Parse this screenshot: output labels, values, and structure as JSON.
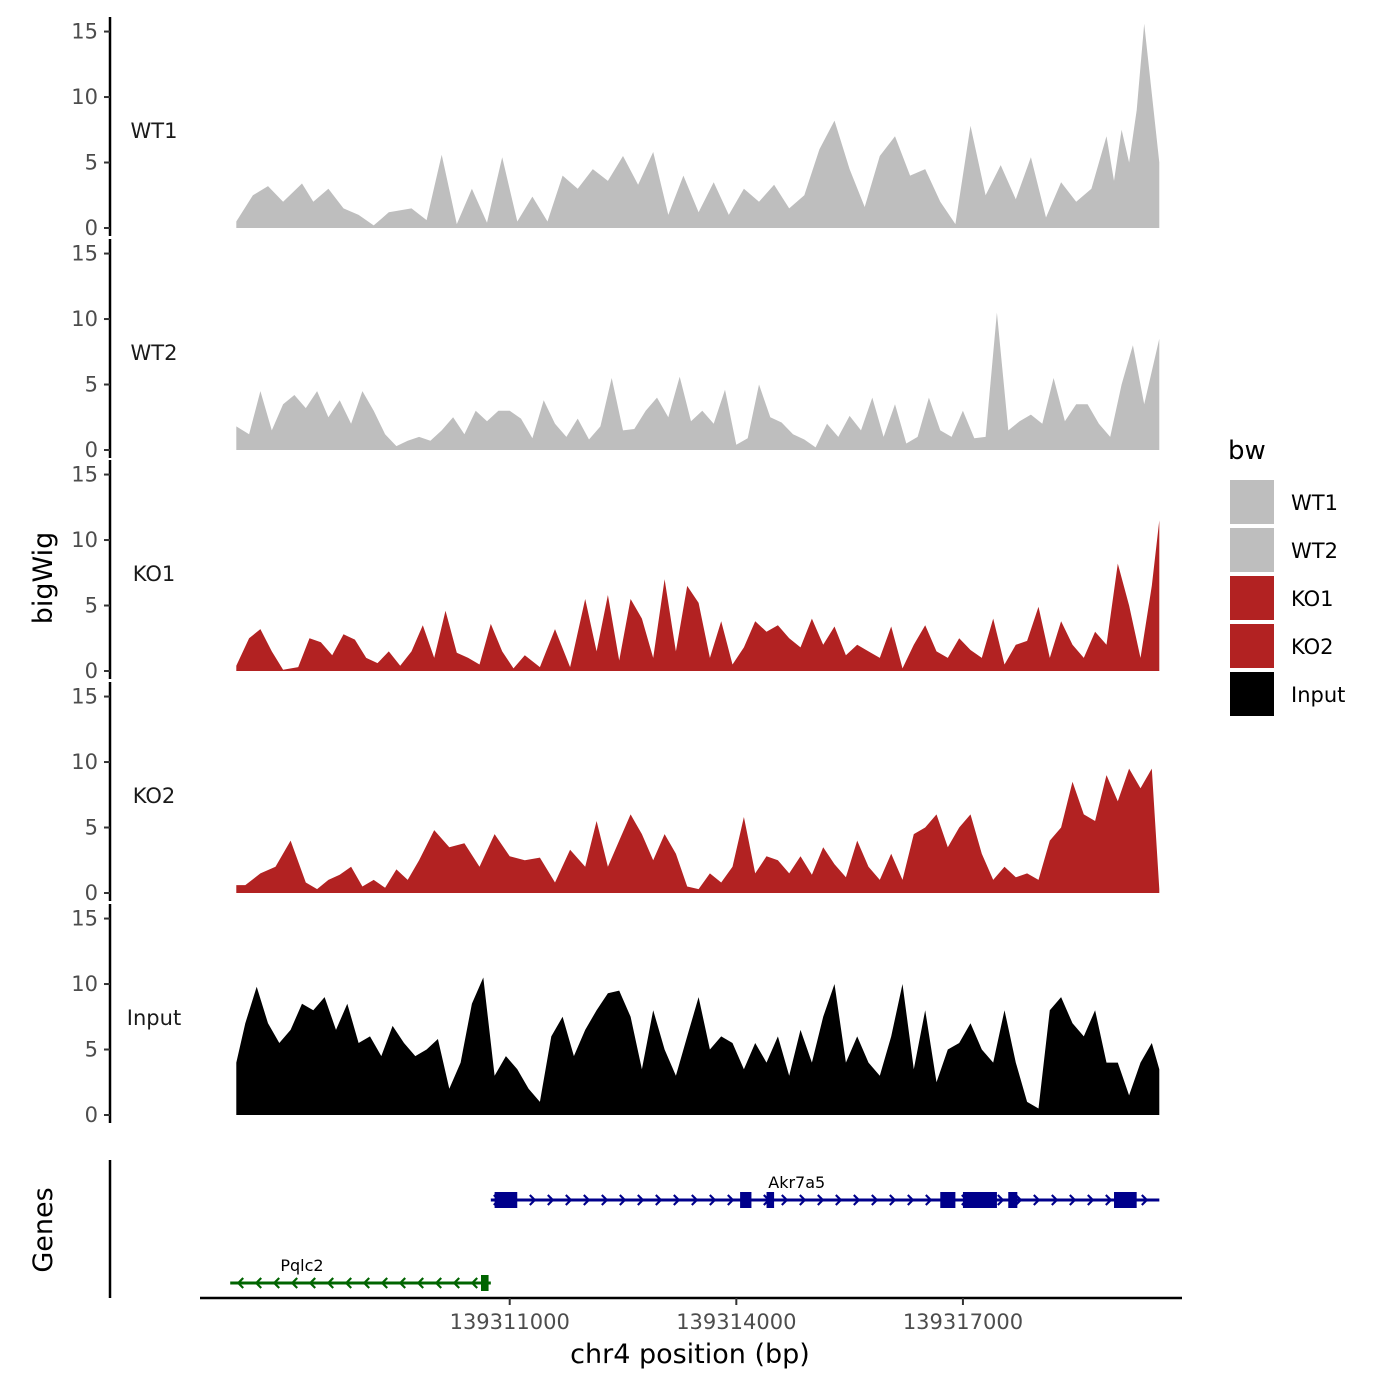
{
  "chart_data": {
    "type": "area",
    "ylabel": "bigWig",
    "xlabel": "chr4 position (bp)",
    "xlim": [
      139307000,
      139319600
    ],
    "x_axis_range": [
      139306900,
      139319900
    ],
    "x_ticks": [
      139311000,
      139314000,
      139317000
    ],
    "x_tick_labels": [
      "139311000",
      "139314000",
      "139317000"
    ],
    "ylim": [
      0,
      15.5
    ],
    "y_ticks": [
      0,
      5,
      10,
      15
    ],
    "y_tick_labels": [
      "0",
      "5",
      "10",
      "15"
    ],
    "colors": {
      "WT1": "#bebebe",
      "WT2": "#bebebe",
      "KO1": "#b22222",
      "KO2": "#b22222",
      "Input": "#000000"
    },
    "series": [
      {
        "name": "WT1",
        "x": [
          139307380,
          139307600,
          139307800,
          139308000,
          139308250,
          139308400,
          139308600,
          139308800,
          139309000,
          139309200,
          139309400,
          139309700,
          139309900,
          139310100,
          139310300,
          139310500,
          139310700,
          139310900,
          139311100,
          139311300,
          139311500,
          139311700,
          139311900,
          139312100,
          139312300,
          139312500,
          139312700,
          139312900,
          139313100,
          139313300,
          139313500,
          139313700,
          139313900,
          139314100,
          139314300,
          139314500,
          139314700,
          139314900,
          139315100,
          139315300,
          139315500,
          139315700,
          139315900,
          139316100,
          139316300,
          139316500,
          139316700,
          139316900,
          139317100,
          139317300,
          139317500,
          139317700,
          139317900,
          139318100,
          139318300,
          139318500,
          139318700,
          139318900,
          139319000,
          139319100,
          139319200,
          139319300,
          139319400,
          139319600
        ],
        "values": [
          0.5,
          2.5,
          3.2,
          2.0,
          3.4,
          2.0,
          3.0,
          1.5,
          1.0,
          0.2,
          1.2,
          1.5,
          0.6,
          5.6,
          0.3,
          3.0,
          0.4,
          5.4,
          0.5,
          2.4,
          0.5,
          4.0,
          3.0,
          4.5,
          3.6,
          5.5,
          3.3,
          5.8,
          1.0,
          4.0,
          1.2,
          3.5,
          1.0,
          3.0,
          2.0,
          3.3,
          1.5,
          2.5,
          6.0,
          8.2,
          4.5,
          1.6,
          5.5,
          7.0,
          4.0,
          4.5,
          2.0,
          0.3,
          7.8,
          2.5,
          4.8,
          2.2,
          5.4,
          0.8,
          3.5,
          2.0,
          3.0,
          7.0,
          3.6,
          7.5,
          5.0,
          9.0,
          15.6,
          5.0
        ]
      },
      {
        "name": "WT2",
        "x": [
          139307380,
          139307550,
          139307700,
          139307850,
          139308000,
          139308150,
          139308300,
          139308450,
          139308600,
          139308750,
          139308900,
          139309050,
          139309200,
          139309350,
          139309500,
          139309650,
          139309800,
          139309950,
          139310100,
          139310250,
          139310400,
          139310550,
          139310700,
          139310850,
          139311000,
          139311150,
          139311300,
          139311450,
          139311600,
          139311750,
          139311900,
          139312050,
          139312200,
          139312350,
          139312500,
          139312650,
          139312800,
          139312950,
          139313100,
          139313250,
          139313400,
          139313550,
          139313700,
          139313850,
          139314000,
          139314150,
          139314300,
          139314450,
          139314600,
          139314750,
          139314900,
          139315050,
          139315200,
          139315350,
          139315500,
          139315650,
          139315800,
          139315950,
          139316100,
          139316250,
          139316400,
          139316550,
          139316700,
          139316850,
          139317000,
          139317150,
          139317300,
          139317450,
          139317600,
          139317750,
          139317900,
          139318050,
          139318200,
          139318350,
          139318500,
          139318650,
          139318800,
          139318950,
          139319100,
          139319250,
          139319400,
          139319600
        ],
        "values": [
          1.8,
          1.2,
          4.5,
          1.5,
          3.5,
          4.2,
          3.2,
          4.5,
          2.5,
          3.8,
          2.0,
          4.5,
          3.0,
          1.2,
          0.3,
          0.7,
          1.0,
          0.7,
          1.5,
          2.5,
          1.2,
          3.0,
          2.2,
          3.0,
          3.0,
          2.4,
          0.9,
          3.8,
          2.0,
          1.0,
          2.4,
          0.8,
          1.8,
          5.5,
          1.5,
          1.6,
          3.0,
          4.0,
          2.5,
          5.6,
          2.2,
          3.0,
          2.0,
          4.6,
          0.4,
          0.9,
          5.0,
          2.5,
          2.1,
          1.2,
          0.8,
          0.2,
          2.0,
          1.0,
          2.6,
          1.5,
          4.0,
          1.0,
          3.5,
          0.5,
          1.0,
          4.0,
          1.5,
          1.0,
          3.0,
          0.9,
          1.0,
          10.5,
          1.5,
          2.2,
          2.7,
          2.0,
          5.5,
          2.2,
          3.5,
          3.5,
          2.0,
          1.0,
          5.0,
          8.0,
          3.5,
          8.5
        ]
      },
      {
        "name": "KO1",
        "x": [
          139307380,
          139307550,
          139307700,
          139307850,
          139308000,
          139308200,
          139308350,
          139308500,
          139308650,
          139308800,
          139308950,
          139309100,
          139309250,
          139309400,
          139309550,
          139309700,
          139309850,
          139310000,
          139310150,
          139310300,
          139310450,
          139310600,
          139310750,
          139310900,
          139311050,
          139311200,
          139311400,
          139311600,
          139311800,
          139312000,
          139312150,
          139312300,
          139312450,
          139312600,
          139312750,
          139312900,
          139313050,
          139313200,
          139313350,
          139313500,
          139313650,
          139313800,
          139313950,
          139314100,
          139314250,
          139314400,
          139314550,
          139314700,
          139314850,
          139315000,
          139315150,
          139315300,
          139315450,
          139315600,
          139315750,
          139315900,
          139316050,
          139316200,
          139316350,
          139316500,
          139316650,
          139316800,
          139316950,
          139317100,
          139317250,
          139317400,
          139317550,
          139317700,
          139317850,
          139318000,
          139318150,
          139318300,
          139318450,
          139318600,
          139318750,
          139318900,
          139319050,
          139319200,
          139319350,
          139319500,
          139319600
        ],
        "values": [
          0.4,
          2.5,
          3.2,
          1.5,
          0.1,
          0.3,
          2.5,
          2.2,
          1.2,
          2.8,
          2.4,
          1.0,
          0.6,
          1.5,
          0.4,
          1.5,
          3.5,
          1.0,
          4.6,
          1.4,
          1.0,
          0.5,
          3.6,
          1.5,
          0.2,
          1.2,
          0.3,
          3.2,
          0.3,
          5.5,
          1.5,
          5.8,
          0.8,
          5.5,
          4.0,
          1.0,
          7.0,
          1.5,
          6.5,
          5.2,
          1.0,
          3.8,
          0.5,
          1.8,
          3.8,
          3.0,
          3.5,
          2.5,
          1.8,
          4.0,
          2.0,
          3.4,
          1.2,
          2.0,
          1.5,
          1.0,
          3.4,
          0.2,
          2.0,
          3.5,
          1.5,
          1.0,
          2.5,
          1.6,
          1.0,
          4.0,
          0.5,
          2.0,
          2.3,
          4.9,
          1.0,
          3.8,
          2.0,
          1.0,
          3.0,
          2.0,
          8.2,
          5.0,
          1.0,
          6.5,
          11.5
        ]
      },
      {
        "name": "KO2",
        "x": [
          139307380,
          139307500,
          139307700,
          139307900,
          139308100,
          139308300,
          139308450,
          139308600,
          139308750,
          139308900,
          139309050,
          139309200,
          139309350,
          139309500,
          139309650,
          139309800,
          139310000,
          139310200,
          139310400,
          139310600,
          139310800,
          139311000,
          139311200,
          139311400,
          139311600,
          139311800,
          139312000,
          139312150,
          139312300,
          139312450,
          139312600,
          139312750,
          139312900,
          139313050,
          139313200,
          139313350,
          139313500,
          139313650,
          139313800,
          139313950,
          139314100,
          139314250,
          139314400,
          139314550,
          139314700,
          139314850,
          139315000,
          139315150,
          139315300,
          139315450,
          139315600,
          139315750,
          139315900,
          139316050,
          139316200,
          139316350,
          139316500,
          139316650,
          139316800,
          139316950,
          139317100,
          139317250,
          139317400,
          139317550,
          139317700,
          139317850,
          139318000,
          139318150,
          139318300,
          139318450,
          139318600,
          139318750,
          139318900,
          139319050,
          139319200,
          139319350,
          139319500,
          139319600
        ],
        "values": [
          0.6,
          0.6,
          1.5,
          2.0,
          4.0,
          0.8,
          0.3,
          1.0,
          1.4,
          2.0,
          0.5,
          1.0,
          0.4,
          1.8,
          1.0,
          2.5,
          4.8,
          3.5,
          3.8,
          2.0,
          4.5,
          2.8,
          2.5,
          2.7,
          0.8,
          3.3,
          2.0,
          5.5,
          2.0,
          4.0,
          6.0,
          4.5,
          2.5,
          4.5,
          3.0,
          0.5,
          0.3,
          1.5,
          0.8,
          2.0,
          5.8,
          1.5,
          2.8,
          2.5,
          1.5,
          2.8,
          1.4,
          3.5,
          2.2,
          1.2,
          4.0,
          2.0,
          1.0,
          3.0,
          1.0,
          4.5,
          5.0,
          6.0,
          3.5,
          5.0,
          6.0,
          3.0,
          1.0,
          2.0,
          1.2,
          1.5,
          1.0,
          4.0,
          5.0,
          8.5,
          6.0,
          5.5,
          9.0,
          7.0,
          9.5,
          8.0,
          9.5,
          0.3
        ]
      },
      {
        "name": "Input",
        "x": [
          139307380,
          139307500,
          139307650,
          139307800,
          139307950,
          139308100,
          139308250,
          139308400,
          139308550,
          139308700,
          139308850,
          139309000,
          139309150,
          139309300,
          139309450,
          139309600,
          139309750,
          139309900,
          139310050,
          139310200,
          139310350,
          139310500,
          139310650,
          139310800,
          139310950,
          139311100,
          139311250,
          139311400,
          139311550,
          139311700,
          139311850,
          139312000,
          139312150,
          139312300,
          139312450,
          139312600,
          139312750,
          139312900,
          139313050,
          139313200,
          139313350,
          139313500,
          139313650,
          139313800,
          139313950,
          139314100,
          139314250,
          139314400,
          139314550,
          139314700,
          139314850,
          139315000,
          139315150,
          139315300,
          139315450,
          139315600,
          139315750,
          139315900,
          139316050,
          139316200,
          139316350,
          139316500,
          139316650,
          139316800,
          139316950,
          139317100,
          139317250,
          139317400,
          139317550,
          139317700,
          139317850,
          139318000,
          139318150,
          139318300,
          139318450,
          139318600,
          139318750,
          139318900,
          139319050,
          139319200,
          139319350,
          139319500,
          139319600
        ],
        "values": [
          4.0,
          7.0,
          9.8,
          7.0,
          5.5,
          6.5,
          8.5,
          8.0,
          9.0,
          6.5,
          8.5,
          5.5,
          6.0,
          4.5,
          6.8,
          5.5,
          4.5,
          5.0,
          5.8,
          2.0,
          4.0,
          8.5,
          10.5,
          3.0,
          4.5,
          3.5,
          2.0,
          1.0,
          6.0,
          7.5,
          4.5,
          6.5,
          8.0,
          9.3,
          9.5,
          7.5,
          3.5,
          8.0,
          5.0,
          3.0,
          6.0,
          9.0,
          5.0,
          6.0,
          5.5,
          3.5,
          5.5,
          4.0,
          6.0,
          3.0,
          6.5,
          4.0,
          7.5,
          10.0,
          4.0,
          6.0,
          4.0,
          3.0,
          6.0,
          10.0,
          3.5,
          8.0,
          2.5,
          5.0,
          5.5,
          7.0,
          5.0,
          4.0,
          8.0,
          4.0,
          1.0,
          0.5,
          8.0,
          9.0,
          7.0,
          6.0,
          8.0,
          4.0,
          4.0,
          1.5,
          4.0,
          5.5,
          3.5
        ]
      }
    ],
    "genes": [
      {
        "name": "Akr7a5",
        "strand": "+",
        "color": "#00008b",
        "start": 139310750,
        "end": 139319600,
        "exons": [
          [
            139310800,
            139311100
          ],
          [
            139314050,
            139314200
          ],
          [
            139314400,
            139314500
          ],
          [
            139316700,
            139316900
          ],
          [
            139317000,
            139317450
          ],
          [
            139317600,
            139317720
          ],
          [
            139319000,
            139319300
          ]
        ]
      },
      {
        "name": "Pqlc2",
        "strand": "-",
        "color": "#006400",
        "start": 139307300,
        "end": 139310750,
        "exons": [
          [
            139310620,
            139310720
          ]
        ]
      }
    ],
    "gene_track_label": "Genes",
    "legend": {
      "title": "bw",
      "entries": [
        "WT1",
        "WT2",
        "KO1",
        "KO2",
        "Input"
      ]
    }
  }
}
